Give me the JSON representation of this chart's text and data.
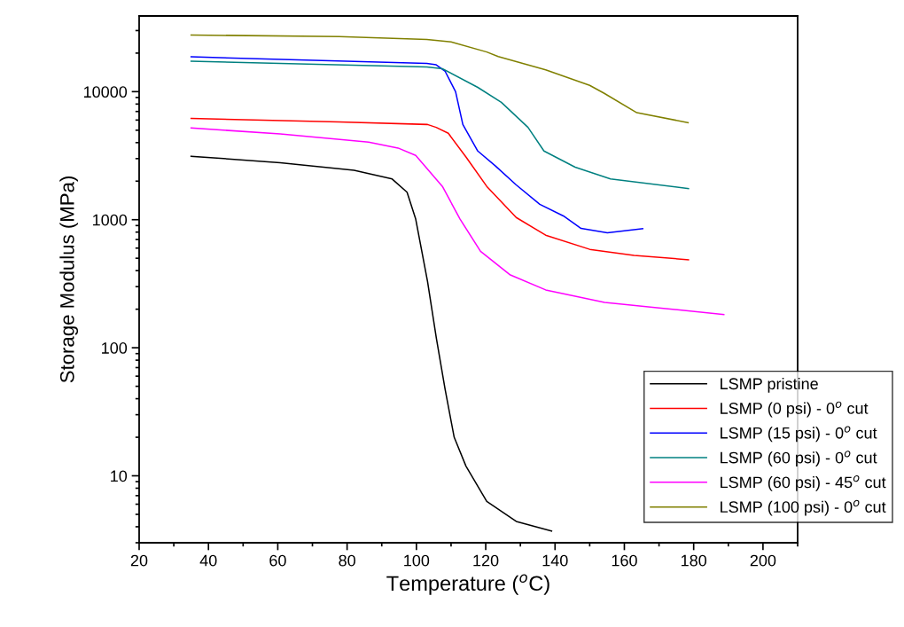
{
  "chart_data": {
    "type": "line",
    "xlabel": "Temperature ($^{o}$C)",
    "ylabel": "Storage Modulus (MPa)",
    "log": "y",
    "xlim": [
      20,
      210
    ],
    "ylim": [
      3,
      39000
    ],
    "xticks": [
      20,
      40,
      60,
      80,
      100,
      120,
      140,
      160,
      180,
      200
    ],
    "yticks": [
      10,
      100,
      1000,
      10000
    ],
    "grid": false,
    "legend": "bottom right",
    "marker": "none",
    "line_style": "solid",
    "series": [
      {
        "name": "LSMP pristine",
        "color": "#000000",
        "x": [
          35,
          60.7,
          82,
          93,
          97.3,
          99.8,
          103.2,
          105.8,
          108.3,
          110.9,
          114.3,
          120.3,
          128.8,
          139
        ],
        "values": [
          3130,
          2790,
          2430,
          2080,
          1640,
          1010,
          331,
          117,
          47,
          20,
          11.9,
          6.3,
          4.4,
          3.7
        ]
      },
      {
        "name": "LSMP (0 psi) - 0$^{o}$ cut",
        "color": "#ff0000",
        "x": [
          35,
          77.7,
          103.2,
          105.7,
          109.2,
          114.3,
          120.3,
          128.8,
          137.3,
          150,
          162.8,
          178.5
        ],
        "values": [
          6170,
          5790,
          5540,
          5260,
          4730,
          3090,
          1820,
          1040,
          757,
          587,
          527,
          487
        ]
      },
      {
        "name": "LSMP (15 psi) - 0$^{o}$ cut",
        "color": "#0000ff",
        "x": [
          35,
          103,
          105.7,
          108.3,
          111.3,
          113.4,
          117.7,
          122.8,
          128.8,
          135.6,
          142.4,
          147.5,
          155.1,
          165.3
        ],
        "values": [
          18700,
          16600,
          16200,
          14400,
          10000,
          5540,
          3440,
          2630,
          1870,
          1320,
          1070,
          855,
          790,
          852
        ]
      },
      {
        "name": "LSMP (60 psi) - 0$^{o}$ cut",
        "color": "#008080",
        "x": [
          35,
          103,
          107.5,
          117.7,
          124.5,
          132.2,
          136.8,
          145.8,
          156,
          178.5
        ],
        "values": [
          17300,
          15600,
          15100,
          10800,
          8260,
          5260,
          3440,
          2570,
          2080,
          1750
        ]
      },
      {
        "name": "LSMP (60 psi) - 45$^{o}$ cut",
        "color": "#ff00ff",
        "x": [
          35,
          60.7,
          86.2,
          94.7,
          99.8,
          107.5,
          112.6,
          118.5,
          127.1,
          137.3,
          154.3,
          171.3,
          188.7
        ],
        "values": [
          5200,
          4680,
          4030,
          3630,
          3180,
          1820,
          1010,
          566,
          370,
          283,
          226,
          203,
          182
        ]
      },
      {
        "name": "LSMP (100 psi) - 0$^{o}$ cut",
        "color": "#808000",
        "x": [
          35,
          77.7,
          103,
          110,
          120.3,
          123.6,
          137.3,
          150,
          154.2,
          163.6,
          178.4
        ],
        "values": [
          27700,
          26900,
          25600,
          24500,
          20400,
          18800,
          14800,
          11200,
          9700,
          6850,
          5730
        ]
      }
    ]
  }
}
